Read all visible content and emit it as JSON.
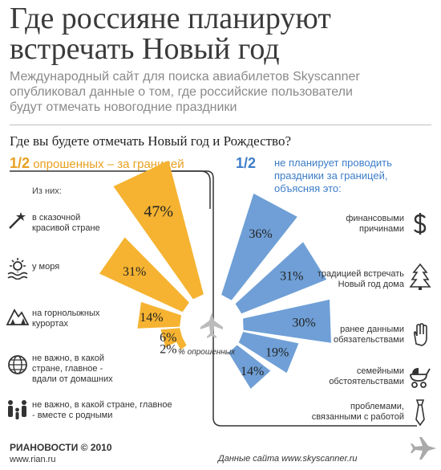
{
  "title_line1": "Где россияне планируют",
  "title_line2": "встречать Новый год",
  "subtitle_lines": [
    "Международный сайт для поиска авиабилетов Skyscanner",
    "опубликовал данные о том, где российские пользователи",
    "будут отмечать новогодние праздники"
  ],
  "question": "Где вы будете отмечать Новый год и Рождество?",
  "left_half": {
    "fraction": "1/2",
    "text": "опрошенных – за границей"
  },
  "right_half": {
    "fraction": "1/2",
    "line1": "не планирует проводить",
    "line2": "праздники за границей,",
    "line3": "объясняя это:"
  },
  "of_them": "Из них:",
  "center_label": "% опрошенных",
  "footer": {
    "logo": "РИАНОВОСТИ © 2010",
    "url": "www.rian.ru",
    "source": "Данные сайта www.skyscanner.ru"
  },
  "colors": {
    "abroad": "#f5b331",
    "home": "#6f9fd6",
    "accent_orange": "#e9a020",
    "accent_blue": "#3d7dc8"
  },
  "chart_data": {
    "type": "bar",
    "title": "Где вы будете отмечать Новый год и Рождество?",
    "unit": "% опрошенных",
    "series": [
      {
        "name": "за границей",
        "categories": [
          "в сказочной красивой стране",
          "у моря",
          "на горнолыжных курортах",
          "не важно, в какой стране, главное - вдали от домашних",
          "не важно, в какой стране, главное - вместе с родными"
        ],
        "values": [
          47,
          31,
          14,
          6,
          2
        ],
        "labels": [
          "47%",
          "31%",
          "14%",
          "6%",
          "2%"
        ],
        "icons": [
          "magic-wand-icon",
          "sun-sea-icon",
          "mountains-icon",
          "globe-icon",
          "family-icon"
        ]
      },
      {
        "name": "не за границей",
        "categories": [
          "финансовыми причинами",
          "традицией встречать Новый год дома",
          "ранее данными обязательствами",
          "семейными обстоятельствами",
          "проблемами, связанными с работой"
        ],
        "values": [
          36,
          31,
          30,
          19,
          14
        ],
        "labels": [
          "36%",
          "31%",
          "30%",
          "19%",
          "14%"
        ],
        "icons": [
          "dollar-icon",
          "christmas-tree-icon",
          "stop-hand-icon",
          "stroller-icon",
          "tie-icon"
        ]
      }
    ]
  }
}
